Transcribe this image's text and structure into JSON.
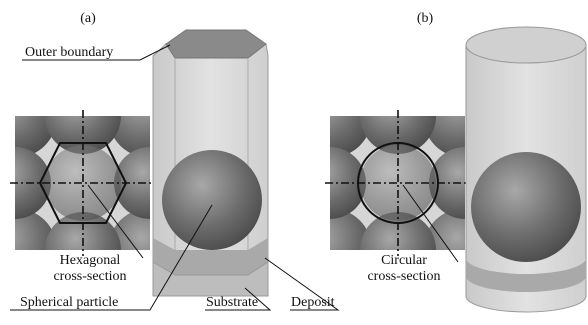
{
  "panels": [
    {
      "label": "(a)"
    },
    {
      "label": "(b)"
    }
  ],
  "labels": {
    "outer_boundary": "Outer boundary",
    "hexagonal": [
      "Hexagonal",
      "cross-section"
    ],
    "circular": [
      "Circular",
      "cross-section"
    ],
    "spherical_particle": "Spherical particle",
    "substrate": "Substrate",
    "deposit": "Deposit"
  }
}
